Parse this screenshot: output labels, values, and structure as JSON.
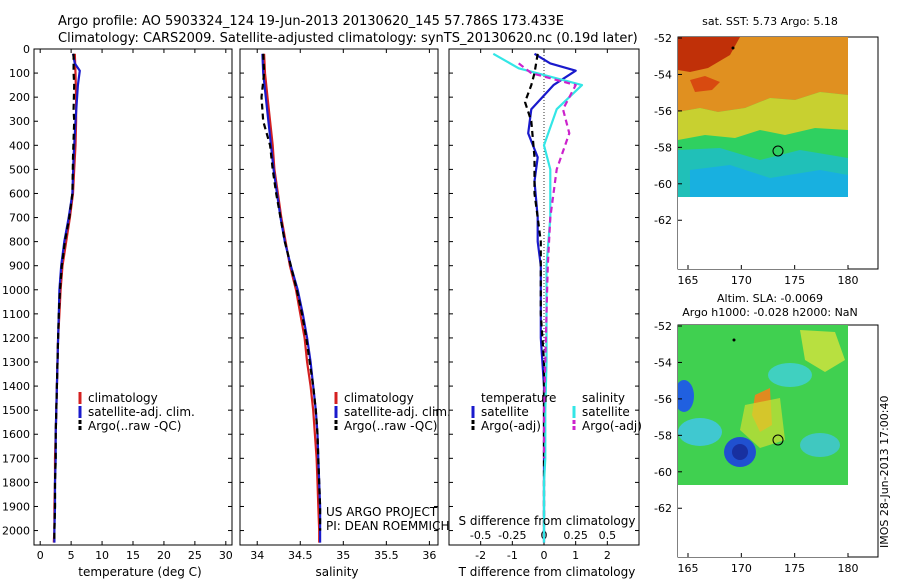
{
  "header": {
    "line1": "Argo profile: AO 5903324_124 19-Jun-2013 20130620_145 57.786S 173.433E",
    "line2": "Climatology: CARS2009. Satellite-adjusted climatology: synTS_20130620.nc (0.19d later)"
  },
  "side_stamp": "IMOS 28-Jun-2013 17:00:40",
  "colors": {
    "climatology": "#d42020",
    "satellite": "#1a1acc",
    "argo": "#000000",
    "sal_satellite": "#33e6e6",
    "sal_argo": "#cc22cc"
  },
  "chart_data": [
    {
      "type": "line",
      "panel": "temperature",
      "xlabel": "temperature (deg C)",
      "ylabel": "",
      "xlim": [
        -1,
        31
      ],
      "ylim": [
        2060,
        0
      ],
      "xticks": [
        0,
        5,
        10,
        15,
        20,
        25,
        30
      ],
      "yticks": [
        0,
        100,
        200,
        300,
        400,
        500,
        600,
        700,
        800,
        900,
        1000,
        1100,
        1200,
        1300,
        1400,
        1500,
        1600,
        1700,
        1800,
        1900,
        2000
      ],
      "legend": [
        "climatology",
        "satellite-adj. clim.",
        "Argo(..raw -QC)"
      ],
      "series": [
        {
          "name": "climatology",
          "color": "#d42020",
          "x": [
            5.6,
            5.7,
            5.8,
            5.8,
            5.7,
            5.5,
            5.3,
            4.8,
            4.2,
            3.6,
            3.3,
            3.1,
            2.9,
            2.8,
            2.7,
            2.6,
            2.5,
            2.4,
            2.4,
            2.3,
            2.3,
            2.2
          ],
          "y": [
            20,
            100,
            200,
            300,
            400,
            500,
            600,
            700,
            800,
            900,
            1000,
            1100,
            1200,
            1300,
            1400,
            1500,
            1600,
            1700,
            1800,
            1900,
            2000,
            2050
          ]
        },
        {
          "name": "satellite-adj. clim.",
          "color": "#1a1acc",
          "x": [
            5.3,
            5.6,
            6.4,
            6.1,
            5.7,
            5.4,
            5.2,
            4.6,
            3.9,
            3.4,
            3.1,
            3.0,
            2.9,
            2.8,
            2.7,
            2.6,
            2.5,
            2.5,
            2.4,
            2.4,
            2.3,
            2.3
          ],
          "y": [
            20,
            60,
            90,
            150,
            300,
            450,
            600,
            700,
            800,
            900,
            1000,
            1100,
            1200,
            1300,
            1400,
            1500,
            1600,
            1700,
            1800,
            1900,
            2000,
            2050
          ]
        },
        {
          "name": "Argo(..raw -QC)",
          "color": "#000000",
          "dashed": true,
          "x": [
            5.4,
            5.4,
            5.5,
            5.4,
            5.5,
            5.3,
            5.2,
            4.7,
            4.0,
            3.5,
            3.2,
            3.0,
            2.9,
            2.8,
            2.7,
            2.6,
            2.5,
            2.5,
            2.4,
            2.4,
            2.3,
            2.3
          ],
          "y": [
            20,
            100,
            150,
            250,
            300,
            450,
            600,
            700,
            800,
            900,
            1000,
            1100,
            1200,
            1300,
            1400,
            1500,
            1600,
            1700,
            1800,
            1900,
            2000,
            2040
          ]
        }
      ]
    },
    {
      "type": "line",
      "panel": "salinity",
      "xlabel": "salinity",
      "xlim": [
        33.8,
        36.1
      ],
      "ylim": [
        2060,
        0
      ],
      "xticks": [
        34,
        34.5,
        35,
        35.5,
        36
      ],
      "xticklabels": [
        "34",
        "34.5",
        "35",
        "35.5",
        "36"
      ],
      "legend": [
        "climatology",
        "satellite-adj. clim.",
        "Argo(..raw -QC)"
      ],
      "annotation": [
        "US ARGO PROJECT",
        "PI: DEAN ROEMMICH"
      ],
      "series": [
        {
          "name": "climatology",
          "color": "#d42020",
          "x": [
            34.08,
            34.09,
            34.12,
            34.15,
            34.18,
            34.2,
            34.24,
            34.28,
            34.33,
            34.38,
            34.45,
            34.5,
            34.55,
            34.58,
            34.62,
            34.65,
            34.67,
            34.69,
            34.7,
            34.71,
            34.72,
            34.72
          ],
          "y": [
            20,
            100,
            200,
            300,
            400,
            500,
            600,
            700,
            800,
            900,
            1000,
            1100,
            1200,
            1300,
            1400,
            1500,
            1600,
            1700,
            1800,
            1900,
            2000,
            2050
          ]
        },
        {
          "name": "satellite-adj. clim.",
          "color": "#1a1acc",
          "x": [
            34.06,
            34.07,
            34.1,
            34.13,
            34.16,
            34.19,
            34.23,
            34.27,
            34.32,
            34.39,
            34.47,
            34.53,
            34.58,
            34.62,
            34.65,
            34.68,
            34.7,
            34.71,
            34.72,
            34.73,
            34.73,
            34.73
          ],
          "y": [
            20,
            100,
            200,
            300,
            400,
            500,
            600,
            700,
            800,
            900,
            1000,
            1100,
            1200,
            1300,
            1400,
            1500,
            1600,
            1700,
            1800,
            1900,
            2000,
            2050
          ]
        },
        {
          "name": "Argo(..raw -QC)",
          "color": "#000000",
          "dashed": true,
          "x": [
            34.07,
            34.08,
            34.05,
            34.07,
            34.15,
            34.18,
            34.22,
            34.27,
            34.32,
            34.39,
            34.46,
            34.52,
            34.57,
            34.61,
            34.65,
            34.68,
            34.7,
            34.71,
            34.72,
            34.73,
            34.73
          ],
          "y": [
            20,
            100,
            200,
            300,
            400,
            500,
            600,
            700,
            800,
            900,
            1000,
            1100,
            1200,
            1300,
            1400,
            1500,
            1600,
            1700,
            1800,
            1900,
            2000
          ]
        }
      ]
    },
    {
      "type": "line",
      "panel": "difference",
      "xlabel": "T difference from climatology",
      "xlabel_top": "S difference from climatology",
      "xlim": [
        -3,
        3
      ],
      "ylim": [
        2060,
        0
      ],
      "xticks": [
        -2,
        -1,
        0,
        1,
        2
      ],
      "xticklabels": [
        "-2",
        "-1",
        "0",
        "1",
        "2"
      ],
      "sticks": [
        -0.5,
        -0.25,
        0,
        0.25,
        0.5
      ],
      "sticklabels": [
        "-0.5",
        "-0.25",
        "0",
        "0.25",
        "0.5"
      ],
      "legend_temperature": [
        "temperature",
        "satellite",
        "Argo(-adj)"
      ],
      "legend_salinity": [
        "salinity",
        "satellite",
        "Argo(-adj)"
      ],
      "series": [
        {
          "name": "temperature satellite",
          "color": "#1a1acc",
          "x": [
            -0.3,
            0.2,
            1.0,
            0.3,
            -0.4,
            -0.5,
            -0.2,
            -0.3,
            -0.2,
            -0.2,
            -0.1,
            -0.1,
            -0.1,
            0.0,
            0.0,
            0.0,
            0.0,
            0.0,
            0.0,
            0.0,
            0.0
          ],
          "y": [
            20,
            60,
            90,
            150,
            250,
            350,
            450,
            550,
            700,
            800,
            900,
            1000,
            1200,
            1400,
            1500,
            1600,
            1700,
            1800,
            1900,
            2000,
            2050
          ]
        },
        {
          "name": "temperature Argo(-adj)",
          "color": "#000000",
          "dashed": true,
          "x": [
            -0.2,
            -0.3,
            -0.4,
            -0.6,
            -0.4,
            -0.3,
            -0.3,
            -0.2,
            -0.1,
            -0.1,
            -0.1,
            0.0,
            0.0,
            0.0,
            0.0,
            0.0
          ],
          "y": [
            20,
            100,
            150,
            220,
            300,
            450,
            600,
            700,
            800,
            900,
            1100,
            1300,
            1500,
            1700,
            1900,
            2040
          ]
        },
        {
          "name": "salinity satellite",
          "color": "#33e6e6",
          "x": [
            -0.4,
            -0.2,
            0.3,
            0.1,
            0.0,
            0.05,
            0.05,
            0.02,
            0.02,
            0.02,
            0.01,
            0.01,
            0.0,
            0.0,
            0.0
          ],
          "y": [
            20,
            80,
            150,
            250,
            400,
            500,
            700,
            900,
            1100,
            1300,
            1500,
            1700,
            1800,
            1900,
            2050
          ]
        },
        {
          "name": "salinity Argo(-adj)",
          "color": "#cc22cc",
          "dashed": true,
          "x": [
            -0.2,
            -0.1,
            0.25,
            0.15,
            0.2,
            0.1,
            0.05,
            0.03,
            0.02,
            0.01,
            0.0,
            0.0
          ],
          "y": [
            60,
            100,
            150,
            250,
            350,
            500,
            700,
            900,
            1100,
            1300,
            1500,
            1700
          ]
        }
      ]
    },
    {
      "type": "heatmap",
      "panel": "sst_map",
      "title": "sat. SST: 5.73 Argo: 5.18",
      "xticks": [
        165,
        170,
        175,
        180
      ],
      "yticks": [
        -52,
        -54,
        -56,
        -58,
        -60,
        -62
      ],
      "marker_lon": 173.433,
      "marker_lat": -57.786
    },
    {
      "type": "heatmap",
      "panel": "sla_map",
      "title": [
        "Altim. SLA: -0.0069",
        "Argo h1000: -0.028 h2000: NaN"
      ],
      "xticks": [
        165,
        170,
        175,
        180
      ],
      "yticks": [
        -52,
        -54,
        -56,
        -58,
        -60,
        -62
      ],
      "marker_lon": 173.433,
      "marker_lat": -57.786
    }
  ]
}
